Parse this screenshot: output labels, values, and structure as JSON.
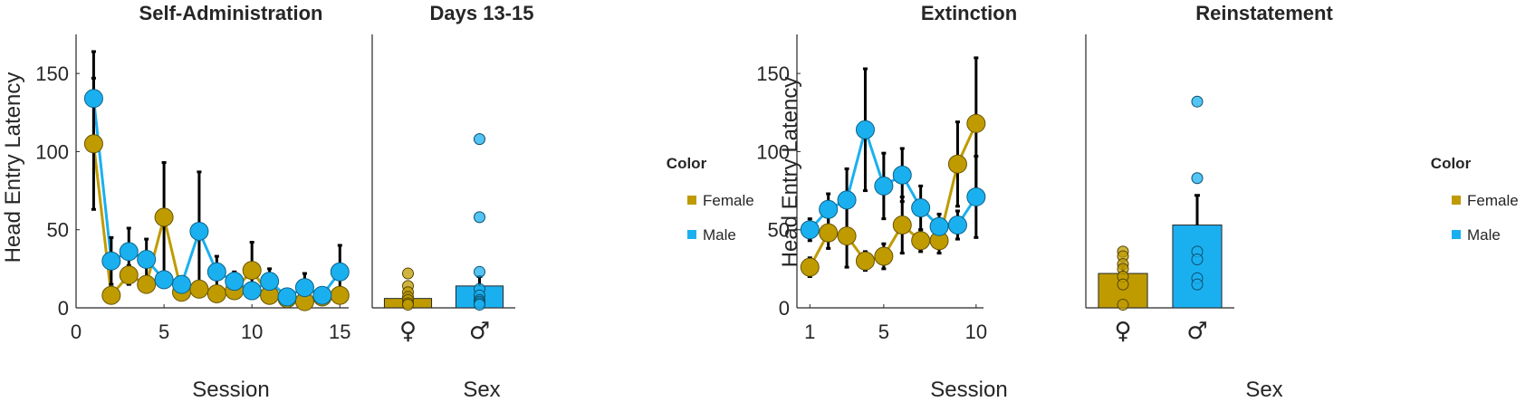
{
  "colors": {
    "female": "#BF9B00",
    "male": "#1AB0F0",
    "error": "#000000",
    "axis": "#262626"
  },
  "chart_data": [
    {
      "type": "line",
      "title": "Self-Administration",
      "xlabel": "Session",
      "ylabel": "Head Entry Latency",
      "xlim": [
        0,
        15.5
      ],
      "ylim": [
        0,
        175
      ],
      "xticks": [
        0,
        5,
        10,
        15
      ],
      "yticks": [
        0,
        50,
        100,
        150
      ],
      "x": [
        1,
        2,
        3,
        4,
        5,
        6,
        7,
        8,
        9,
        10,
        11,
        12,
        13,
        14,
        15
      ],
      "series": [
        {
          "name": "Female",
          "color": "female",
          "values": [
            105,
            8,
            21,
            15,
            58,
            10,
            12,
            9,
            11,
            24,
            8,
            6,
            4,
            7,
            8
          ],
          "err": [
            42,
            5,
            6,
            5,
            35,
            3,
            4,
            3,
            3,
            18,
            3,
            2,
            2,
            2,
            3
          ]
        },
        {
          "name": "Male",
          "color": "male",
          "values": [
            134,
            30,
            36,
            31,
            18,
            15,
            49,
            23,
            17,
            11,
            17,
            7,
            13,
            8,
            23
          ],
          "err": [
            30,
            15,
            15,
            13,
            5,
            4,
            38,
            10,
            6,
            4,
            8,
            2,
            9,
            3,
            17
          ]
        }
      ]
    },
    {
      "type": "bar",
      "title": "Days 13-15",
      "xlabel": "Sex",
      "ylim": [
        0,
        175
      ],
      "categories": [
        "♀",
        "♂"
      ],
      "series": [
        {
          "name": "Female",
          "color": "female",
          "value": 6,
          "err": 3,
          "points": [
            22,
            14,
            10,
            7,
            5,
            3,
            2
          ]
        },
        {
          "name": "Male",
          "color": "male",
          "value": 14,
          "err": 6,
          "points": [
            108,
            58,
            23,
            12,
            8,
            5,
            4,
            3,
            2
          ]
        }
      ]
    },
    {
      "type": "line",
      "title": "Extinction",
      "xlabel": "Session",
      "ylabel": "Head Entry Latency",
      "xlim": [
        0.3,
        10.4
      ],
      "ylim": [
        0,
        175
      ],
      "xticks": [
        1,
        5,
        10
      ],
      "yticks": [
        0,
        50,
        100,
        150
      ],
      "x": [
        1,
        2,
        3,
        4,
        5,
        6,
        7,
        8,
        9,
        10
      ],
      "series": [
        {
          "name": "Female",
          "color": "female",
          "values": [
            26,
            48,
            46,
            30,
            33,
            53,
            43,
            43,
            92,
            118
          ],
          "err": [
            6,
            10,
            20,
            6,
            8,
            18,
            7,
            8,
            27,
            42
          ]
        },
        {
          "name": "Male",
          "color": "male",
          "values": [
            50,
            63,
            69,
            114,
            78,
            85,
            64,
            52,
            53,
            71
          ],
          "err": [
            7,
            10,
            20,
            39,
            21,
            17,
            14,
            8,
            9,
            26
          ]
        }
      ]
    },
    {
      "type": "bar",
      "title": "Reinstatement",
      "xlabel": "Sex",
      "ylim": [
        0,
        175
      ],
      "categories": [
        "♀",
        "♂"
      ],
      "series": [
        {
          "name": "Female",
          "color": "female",
          "value": 22,
          "err": 5,
          "points": [
            36,
            33,
            28,
            25,
            20,
            15,
            2
          ]
        },
        {
          "name": "Male",
          "color": "male",
          "value": 53,
          "err": 19,
          "points": [
            132,
            83,
            36,
            31,
            19,
            15
          ]
        }
      ]
    }
  ],
  "legends": [
    {
      "title": "Color",
      "entries": [
        {
          "label": "Female",
          "color": "female"
        },
        {
          "label": "Male",
          "color": "male"
        }
      ]
    },
    {
      "title": "Color",
      "entries": [
        {
          "label": "Female",
          "color": "female"
        },
        {
          "label": "Male",
          "color": "male"
        }
      ]
    }
  ]
}
